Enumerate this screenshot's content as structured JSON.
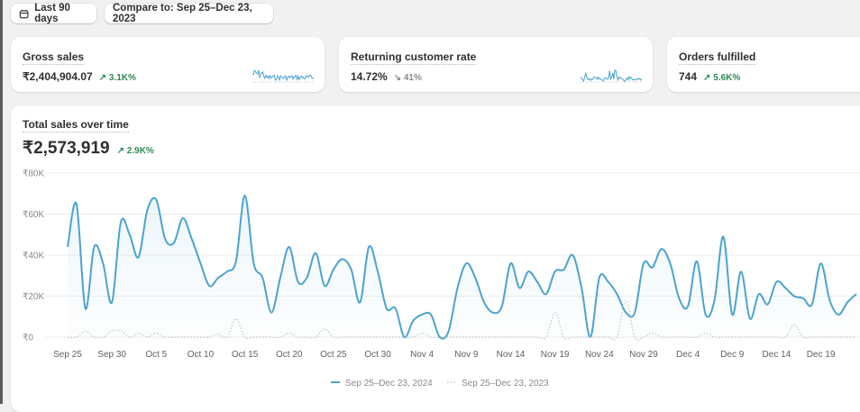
{
  "toolbar": {
    "date_range_icon": "calendar-icon",
    "date_range_label": "Last 90 days",
    "compare_label": "Compare to: Sep 25–Dec 23, 2023"
  },
  "metrics": [
    {
      "title": "Gross sales",
      "value": "₹2,404,904.07",
      "change": "3.1K%",
      "direction": "up"
    },
    {
      "title": "Returning customer rate",
      "value": "14.72%",
      "change": "41%",
      "direction": "down"
    },
    {
      "title": "Orders fulfilled",
      "value": "744",
      "change": "5.6K%",
      "direction": "up"
    }
  ],
  "colors": {
    "primary_series": "#4ba3cf",
    "comparison_series": "#b9c4cc",
    "positive": "#2f8a55",
    "negative": "#8a8a8a"
  },
  "chart": {
    "title": "Total sales over time",
    "total": "₹2,573,919",
    "change": "2.9K%",
    "direction": "up"
  },
  "chart_data": {
    "type": "line",
    "y_ticks": [
      "₹0",
      "₹20K",
      "₹40K",
      "₹60K",
      "₹80K"
    ],
    "ylim": [
      0,
      80000
    ],
    "x_ticks": [
      "Sep 25",
      "Sep 30",
      "Oct 5",
      "Oct 10",
      "Oct 15",
      "Oct 20",
      "Oct 25",
      "Oct 30",
      "Nov 4",
      "Nov 9",
      "Nov 14",
      "Nov 19",
      "Nov 24",
      "Nov 29",
      "Dec 4",
      "Dec 9",
      "Dec 14",
      "Dec 19"
    ],
    "x_start": "Sep 25",
    "x_end": "Dec 23",
    "grid": true,
    "legend_position": "bottom",
    "series": [
      {
        "name": "Sep 25–Dec 23, 2024",
        "style": "solid",
        "values": [
          44000,
          65000,
          14000,
          44000,
          36000,
          17000,
          56000,
          50000,
          39000,
          62000,
          67000,
          48000,
          46000,
          58000,
          48000,
          36000,
          25000,
          29000,
          32000,
          37000,
          69000,
          36000,
          29000,
          12000,
          29000,
          44000,
          27000,
          29000,
          41000,
          25000,
          33000,
          38000,
          33000,
          17000,
          44000,
          32000,
          14000,
          14000,
          0,
          8000,
          11000,
          11000,
          0,
          3000,
          24000,
          36000,
          29000,
          17000,
          12000,
          15000,
          36000,
          24000,
          32000,
          27000,
          21000,
          32000,
          33000,
          40000,
          24000,
          0,
          29000,
          27000,
          21000,
          12000,
          12000,
          36000,
          34000,
          43000,
          36000,
          19000,
          15000,
          37000,
          11000,
          18000,
          49000,
          11000,
          32000,
          9000,
          21000,
          16000,
          27000,
          24000,
          20000,
          19000,
          16000,
          36000,
          18000,
          11000,
          17000,
          21000
        ]
      },
      {
        "name": "Sep 25–Dec 23, 2023",
        "style": "dotted",
        "values": [
          0,
          0,
          3000,
          0,
          0,
          3000,
          3000,
          0,
          2000,
          0,
          2000,
          0,
          0,
          0,
          0,
          0,
          0,
          1500,
          0,
          9000,
          0,
          0,
          0,
          0,
          0,
          2000,
          0,
          0,
          0,
          4000,
          0,
          0,
          0,
          0,
          0,
          0,
          0,
          0,
          0,
          0,
          2000,
          0,
          0,
          0,
          0,
          0,
          0,
          0,
          0,
          0,
          0,
          0,
          0,
          0,
          0,
          12000,
          0,
          0,
          0,
          0,
          0,
          0,
          0,
          18000,
          0,
          0,
          2000,
          0,
          0,
          0,
          0,
          0,
          2000,
          0,
          0,
          0,
          0,
          0,
          0,
          0,
          0,
          0,
          6000,
          0,
          0,
          0,
          0,
          0,
          0,
          0
        ]
      }
    ]
  }
}
